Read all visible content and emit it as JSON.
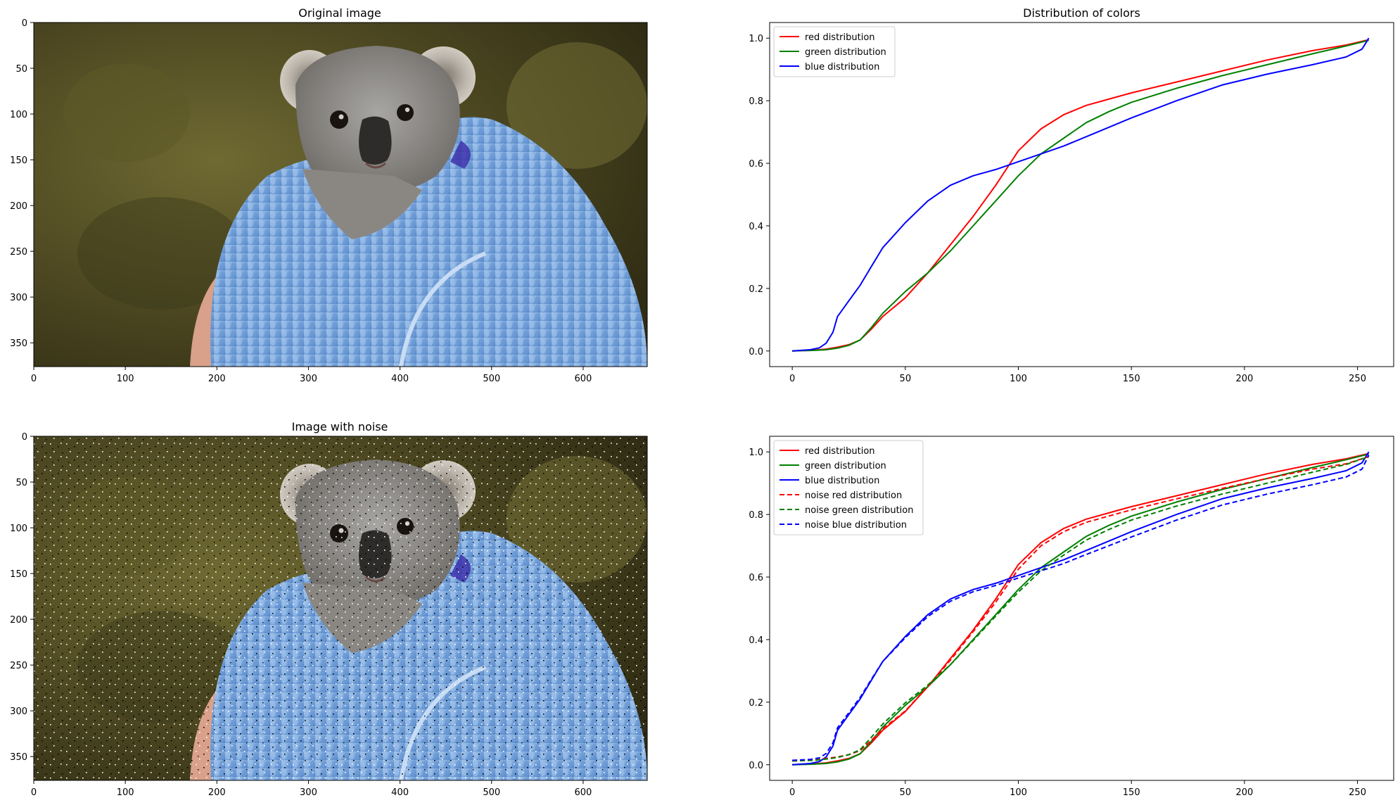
{
  "colors": {
    "red": "#ff0000",
    "green": "#008000",
    "blue": "#0000ff"
  },
  "panels": {
    "original_image": {
      "title": "Original image",
      "x_ticks": [
        "0",
        "100",
        "200",
        "300",
        "400",
        "500",
        "600"
      ],
      "y_ticks": [
        "0",
        "50",
        "100",
        "150",
        "200",
        "250",
        "300",
        "350"
      ],
      "subject": "koala-joey-wrapped-in-blue-knitted-blanket"
    },
    "noise_image": {
      "title": "Image with noise",
      "x_ticks": [
        "0",
        "100",
        "200",
        "300",
        "400",
        "500",
        "600"
      ],
      "y_ticks": [
        "0",
        "50",
        "100",
        "150",
        "200",
        "250",
        "300",
        "350"
      ],
      "subject": "koala-joey-wrapped-in-blue-knitted-blanket-with-salt-and-pepper-noise"
    }
  },
  "chart_data": [
    {
      "type": "line",
      "title": "Distribution of colors",
      "xlabel": "",
      "ylabel": "",
      "xlim": [
        -10,
        266
      ],
      "ylim": [
        -0.05,
        1.05
      ],
      "xticks": [
        0,
        50,
        100,
        150,
        200,
        250
      ],
      "yticks": [
        0.0,
        0.2,
        0.4,
        0.6,
        0.8,
        1.0
      ],
      "ytick_labels": [
        "0.0",
        "0.2",
        "0.4",
        "0.6",
        "0.8",
        "1.0"
      ],
      "grid": false,
      "legend_position": "upper-left",
      "series": [
        {
          "name": "red distribution",
          "color": "#ff0000",
          "dash": "solid",
          "x": [
            0,
            10,
            15,
            20,
            25,
            30,
            35,
            40,
            50,
            60,
            70,
            80,
            90,
            100,
            110,
            120,
            130,
            140,
            150,
            170,
            190,
            210,
            230,
            245,
            255
          ],
          "y": [
            0.0,
            0.003,
            0.006,
            0.012,
            0.02,
            0.035,
            0.07,
            0.11,
            0.17,
            0.25,
            0.34,
            0.43,
            0.53,
            0.64,
            0.71,
            0.755,
            0.785,
            0.805,
            0.825,
            0.86,
            0.895,
            0.93,
            0.96,
            0.978,
            0.995
          ]
        },
        {
          "name": "green distribution",
          "color": "#008000",
          "dash": "solid",
          "x": [
            0,
            10,
            15,
            20,
            25,
            30,
            35,
            40,
            50,
            60,
            70,
            80,
            90,
            100,
            110,
            120,
            130,
            140,
            150,
            170,
            190,
            210,
            230,
            245,
            255
          ],
          "y": [
            0.0,
            0.002,
            0.004,
            0.009,
            0.018,
            0.035,
            0.075,
            0.12,
            0.19,
            0.25,
            0.32,
            0.4,
            0.48,
            0.56,
            0.63,
            0.68,
            0.73,
            0.765,
            0.795,
            0.84,
            0.88,
            0.915,
            0.95,
            0.975,
            0.993
          ]
        },
        {
          "name": "blue distribution",
          "color": "#0000ff",
          "dash": "solid",
          "x": [
            0,
            8,
            12,
            15,
            18,
            20,
            25,
            30,
            35,
            40,
            45,
            50,
            60,
            70,
            80,
            90,
            100,
            110,
            120,
            130,
            140,
            150,
            170,
            190,
            210,
            230,
            245,
            252,
            255
          ],
          "y": [
            0.0,
            0.004,
            0.01,
            0.025,
            0.06,
            0.11,
            0.16,
            0.21,
            0.27,
            0.33,
            0.37,
            0.41,
            0.48,
            0.53,
            0.56,
            0.58,
            0.605,
            0.63,
            0.655,
            0.685,
            0.715,
            0.745,
            0.8,
            0.85,
            0.885,
            0.915,
            0.94,
            0.965,
            1.0
          ]
        }
      ]
    },
    {
      "type": "line",
      "title": "",
      "xlabel": "",
      "ylabel": "",
      "xlim": [
        -10,
        266
      ],
      "ylim": [
        -0.05,
        1.05
      ],
      "xticks": [
        0,
        50,
        100,
        150,
        200,
        250
      ],
      "yticks": [
        0.0,
        0.2,
        0.4,
        0.6,
        0.8,
        1.0
      ],
      "ytick_labels": [
        "0.0",
        "0.2",
        "0.4",
        "0.6",
        "0.8",
        "1.0"
      ],
      "grid": false,
      "legend_position": "upper-left",
      "series": [
        {
          "name": "red distribution",
          "color": "#ff0000",
          "dash": "solid",
          "x": [
            0,
            10,
            15,
            20,
            25,
            30,
            35,
            40,
            50,
            60,
            70,
            80,
            90,
            100,
            110,
            120,
            130,
            140,
            150,
            170,
            190,
            210,
            230,
            245,
            255
          ],
          "y": [
            0.0,
            0.003,
            0.006,
            0.012,
            0.02,
            0.035,
            0.07,
            0.11,
            0.17,
            0.25,
            0.34,
            0.43,
            0.53,
            0.64,
            0.71,
            0.755,
            0.785,
            0.805,
            0.825,
            0.86,
            0.895,
            0.93,
            0.96,
            0.978,
            0.995
          ]
        },
        {
          "name": "green distribution",
          "color": "#008000",
          "dash": "solid",
          "x": [
            0,
            10,
            15,
            20,
            25,
            30,
            35,
            40,
            50,
            60,
            70,
            80,
            90,
            100,
            110,
            120,
            130,
            140,
            150,
            170,
            190,
            210,
            230,
            245,
            255
          ],
          "y": [
            0.0,
            0.002,
            0.004,
            0.009,
            0.018,
            0.035,
            0.075,
            0.12,
            0.19,
            0.25,
            0.32,
            0.4,
            0.48,
            0.56,
            0.63,
            0.68,
            0.73,
            0.765,
            0.795,
            0.84,
            0.88,
            0.915,
            0.95,
            0.975,
            0.993
          ]
        },
        {
          "name": "blue distribution",
          "color": "#0000ff",
          "dash": "solid",
          "x": [
            0,
            8,
            12,
            15,
            18,
            20,
            25,
            30,
            35,
            40,
            45,
            50,
            60,
            70,
            80,
            90,
            100,
            110,
            120,
            130,
            140,
            150,
            170,
            190,
            210,
            230,
            245,
            252,
            255
          ],
          "y": [
            0.0,
            0.004,
            0.01,
            0.025,
            0.06,
            0.11,
            0.16,
            0.21,
            0.27,
            0.33,
            0.37,
            0.41,
            0.48,
            0.53,
            0.56,
            0.58,
            0.605,
            0.63,
            0.655,
            0.685,
            0.715,
            0.745,
            0.8,
            0.85,
            0.885,
            0.915,
            0.94,
            0.965,
            1.0
          ]
        },
        {
          "name": "noise red distribution",
          "color": "#ff0000",
          "dash": "dashed",
          "x": [
            0,
            10,
            15,
            20,
            25,
            30,
            35,
            40,
            50,
            60,
            70,
            80,
            90,
            100,
            110,
            120,
            130,
            140,
            150,
            170,
            190,
            210,
            230,
            245,
            255
          ],
          "y": [
            0.012,
            0.015,
            0.02,
            0.025,
            0.032,
            0.045,
            0.078,
            0.115,
            0.172,
            0.25,
            0.335,
            0.425,
            0.52,
            0.625,
            0.7,
            0.745,
            0.775,
            0.795,
            0.815,
            0.85,
            0.883,
            0.915,
            0.945,
            0.962,
            0.985
          ]
        },
        {
          "name": "noise green distribution",
          "color": "#008000",
          "dash": "dashed",
          "x": [
            0,
            10,
            15,
            20,
            25,
            30,
            35,
            40,
            50,
            60,
            70,
            80,
            90,
            100,
            110,
            120,
            130,
            140,
            150,
            170,
            190,
            210,
            230,
            245,
            255
          ],
          "y": [
            0.012,
            0.014,
            0.018,
            0.023,
            0.032,
            0.048,
            0.088,
            0.13,
            0.198,
            0.255,
            0.32,
            0.397,
            0.475,
            0.552,
            0.62,
            0.67,
            0.718,
            0.752,
            0.782,
            0.827,
            0.865,
            0.9,
            0.935,
            0.96,
            0.985
          ]
        },
        {
          "name": "noise blue distribution",
          "color": "#0000ff",
          "dash": "dashed",
          "x": [
            0,
            8,
            12,
            15,
            18,
            20,
            25,
            30,
            35,
            40,
            45,
            50,
            60,
            70,
            80,
            90,
            100,
            110,
            120,
            130,
            140,
            150,
            170,
            190,
            210,
            230,
            245,
            252,
            255
          ],
          "y": [
            0.014,
            0.017,
            0.022,
            0.036,
            0.07,
            0.118,
            0.166,
            0.215,
            0.273,
            0.33,
            0.368,
            0.406,
            0.474,
            0.523,
            0.553,
            0.573,
            0.597,
            0.62,
            0.643,
            0.672,
            0.7,
            0.728,
            0.782,
            0.83,
            0.865,
            0.895,
            0.92,
            0.945,
            0.99
          ]
        }
      ]
    }
  ]
}
